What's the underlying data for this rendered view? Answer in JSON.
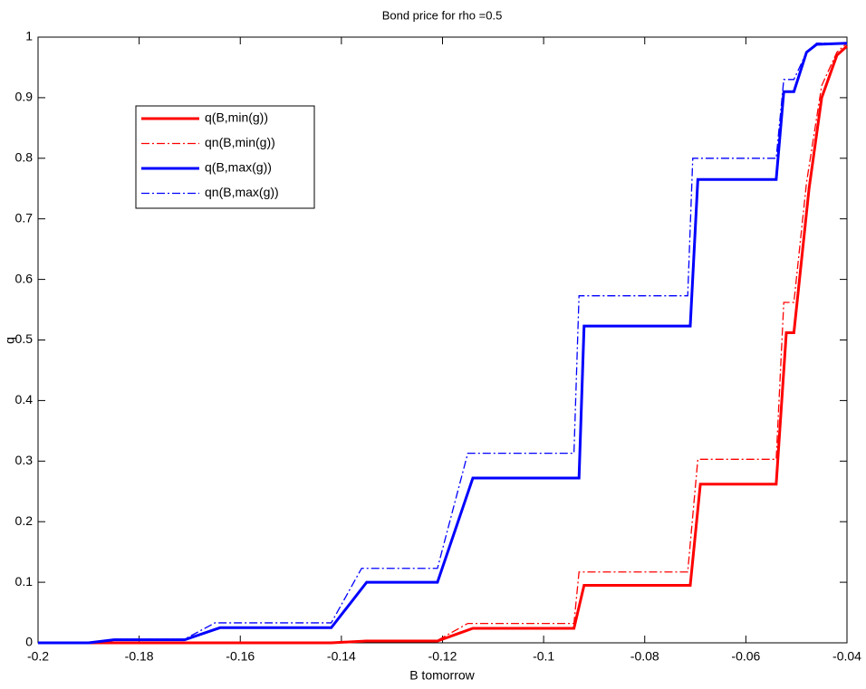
{
  "chart_data": {
    "type": "line",
    "title": "Bond price for rho =0.5",
    "x_label": "B tomorrow",
    "y_label": "q",
    "xlim": [
      -0.2,
      -0.04
    ],
    "xticks": [
      -0.2,
      -0.18,
      -0.16,
      -0.14,
      -0.12,
      -0.1,
      -0.08,
      -0.06,
      -0.04
    ],
    "ylim": [
      0,
      1
    ],
    "yticks": [
      0,
      0.1,
      0.2,
      0.3,
      0.4,
      0.5,
      0.6,
      0.7,
      0.8,
      0.9,
      1
    ],
    "grid": false,
    "legend": "northwest",
    "series": [
      {
        "name": "q(B,min(g))",
        "color": "#ff0000",
        "style": "solid",
        "x": [
          -0.2,
          -0.142,
          -0.135,
          -0.121,
          -0.114,
          -0.094,
          -0.092,
          -0.071,
          -0.069,
          -0.054,
          -0.052,
          -0.0505,
          -0.0475,
          -0.045,
          -0.042,
          -0.04
        ],
        "values": [
          0,
          0,
          0.003,
          0.003,
          0.024,
          0.024,
          0.095,
          0.095,
          0.262,
          0.262,
          0.512,
          0.512,
          0.75,
          0.9,
          0.97,
          0.985
        ]
      },
      {
        "name": "qn(B,min(g))",
        "color": "#ff0000",
        "style": "dashdot",
        "x": [
          -0.2,
          -0.142,
          -0.135,
          -0.121,
          -0.115,
          -0.094,
          -0.093,
          -0.0715,
          -0.0695,
          -0.054,
          -0.0525,
          -0.0505,
          -0.048,
          -0.045,
          -0.042,
          -0.04
        ],
        "values": [
          0,
          0,
          0.004,
          0.004,
          0.032,
          0.032,
          0.117,
          0.117,
          0.303,
          0.303,
          0.562,
          0.562,
          0.76,
          0.92,
          0.975,
          0.99
        ]
      },
      {
        "name": "q(B,max(g))",
        "color": "#0000ff",
        "style": "solid",
        "x": [
          -0.2,
          -0.19,
          -0.185,
          -0.171,
          -0.164,
          -0.142,
          -0.135,
          -0.121,
          -0.114,
          -0.093,
          -0.092,
          -0.071,
          -0.0695,
          -0.054,
          -0.0525,
          -0.0505,
          -0.048,
          -0.046,
          -0.04
        ],
        "values": [
          0,
          0,
          0.005,
          0.005,
          0.025,
          0.025,
          0.1,
          0.1,
          0.272,
          0.272,
          0.523,
          0.523,
          0.765,
          0.765,
          0.91,
          0.91,
          0.975,
          0.988,
          0.99
        ]
      },
      {
        "name": "qn(B,max(g))",
        "color": "#0000ff",
        "style": "dashdot",
        "x": [
          -0.2,
          -0.19,
          -0.185,
          -0.171,
          -0.165,
          -0.142,
          -0.136,
          -0.121,
          -0.115,
          -0.094,
          -0.093,
          -0.0715,
          -0.0705,
          -0.054,
          -0.0525,
          -0.0505,
          -0.048,
          -0.046,
          -0.04
        ],
        "values": [
          0,
          0,
          0.006,
          0.006,
          0.033,
          0.033,
          0.123,
          0.123,
          0.313,
          0.313,
          0.573,
          0.573,
          0.8,
          0.8,
          0.93,
          0.93,
          0.975,
          0.99,
          0.99
        ]
      }
    ]
  }
}
